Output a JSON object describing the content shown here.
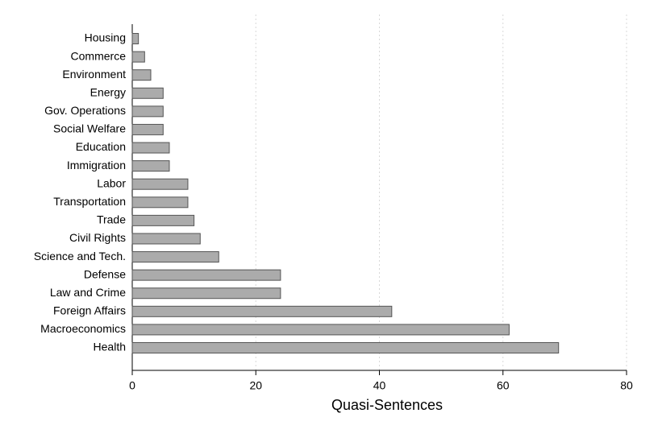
{
  "chart_data": {
    "type": "barh",
    "xlabel": "Quasi-Sentences",
    "categories": [
      "Housing",
      "Commerce",
      "Environment",
      "Energy",
      "Gov. Operations",
      "Social Welfare",
      "Education",
      "Immigration",
      "Labor",
      "Transportation",
      "Trade",
      "Civil Rights",
      "Science and Tech.",
      "Defense",
      "Law and Crime",
      "Foreign Affairs",
      "Macroeconomics",
      "Health"
    ],
    "values": [
      1,
      2,
      3,
      5,
      5,
      5,
      6,
      6,
      9,
      9,
      10,
      11,
      14,
      24,
      24,
      42,
      61,
      69
    ],
    "color": "#ababab",
    "xlim": [
      0,
      80
    ],
    "xticks": [
      0,
      20,
      40,
      60,
      80
    ],
    "grid": true
  }
}
